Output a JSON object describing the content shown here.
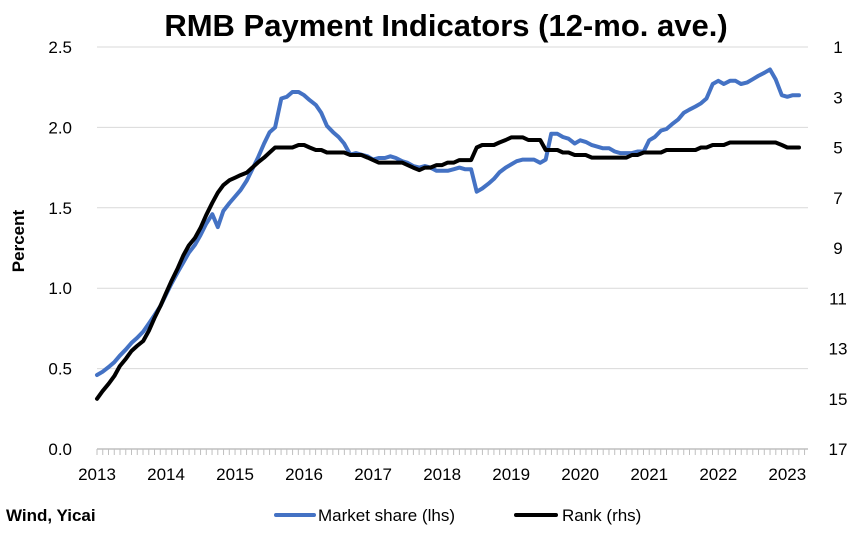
{
  "chart_data": {
    "type": "line",
    "title": "RMB Payment Indicators (12-mo. ave.)",
    "ylabel": "Percent",
    "y2label": "",
    "source": "Wind, Yicai",
    "x_ticks": [
      "2013",
      "2014",
      "2015",
      "2016",
      "2017",
      "2018",
      "2019",
      "2020",
      "2021",
      "2022",
      "2023"
    ],
    "y_ticks": [
      "0.0",
      "0.5",
      "1.0",
      "1.5",
      "2.0",
      "2.5"
    ],
    "y2_ticks": [
      "1",
      "3",
      "5",
      "7",
      "9",
      "11",
      "13",
      "15",
      "17"
    ],
    "xlim": [
      2013.0,
      2023.3
    ],
    "ylim": [
      0,
      2.5
    ],
    "y2lim": [
      1,
      17
    ],
    "y2_inverted": true,
    "grid": true,
    "legend_position": "bottom",
    "colors": {
      "market_share": "#4472C4",
      "rank": "#000000",
      "grid": "#d9d9d9"
    },
    "series": [
      {
        "name": "Market share (lhs)",
        "axis": "left",
        "points": [
          [
            2013.0,
            0.46
          ],
          [
            2013.08,
            0.48
          ],
          [
            2013.17,
            0.51
          ],
          [
            2013.25,
            0.54
          ],
          [
            2013.33,
            0.58
          ],
          [
            2013.42,
            0.62
          ],
          [
            2013.5,
            0.66
          ],
          [
            2013.58,
            0.69
          ],
          [
            2013.67,
            0.73
          ],
          [
            2013.75,
            0.78
          ],
          [
            2013.83,
            0.83
          ],
          [
            2013.92,
            0.89
          ],
          [
            2014.0,
            0.96
          ],
          [
            2014.08,
            1.03
          ],
          [
            2014.17,
            1.1
          ],
          [
            2014.25,
            1.16
          ],
          [
            2014.33,
            1.22
          ],
          [
            2014.42,
            1.27
          ],
          [
            2014.5,
            1.33
          ],
          [
            2014.58,
            1.4
          ],
          [
            2014.67,
            1.46
          ],
          [
            2014.75,
            1.38
          ],
          [
            2014.83,
            1.48
          ],
          [
            2014.92,
            1.53
          ],
          [
            2015.0,
            1.57
          ],
          [
            2015.08,
            1.61
          ],
          [
            2015.17,
            1.67
          ],
          [
            2015.25,
            1.74
          ],
          [
            2015.33,
            1.81
          ],
          [
            2015.42,
            1.9
          ],
          [
            2015.5,
            1.97
          ],
          [
            2015.58,
            2.0
          ],
          [
            2015.67,
            2.18
          ],
          [
            2015.75,
            2.19
          ],
          [
            2015.83,
            2.22
          ],
          [
            2015.92,
            2.22
          ],
          [
            2016.0,
            2.2
          ],
          [
            2016.08,
            2.17
          ],
          [
            2016.17,
            2.14
          ],
          [
            2016.25,
            2.09
          ],
          [
            2016.33,
            2.01
          ],
          [
            2016.42,
            1.97
          ],
          [
            2016.5,
            1.94
          ],
          [
            2016.58,
            1.9
          ],
          [
            2016.67,
            1.83
          ],
          [
            2016.75,
            1.84
          ],
          [
            2016.83,
            1.83
          ],
          [
            2016.92,
            1.82
          ],
          [
            2017.0,
            1.8
          ],
          [
            2017.08,
            1.81
          ],
          [
            2017.17,
            1.81
          ],
          [
            2017.25,
            1.82
          ],
          [
            2017.33,
            1.81
          ],
          [
            2017.42,
            1.79
          ],
          [
            2017.5,
            1.78
          ],
          [
            2017.58,
            1.76
          ],
          [
            2017.67,
            1.75
          ],
          [
            2017.75,
            1.76
          ],
          [
            2017.83,
            1.75
          ],
          [
            2017.92,
            1.73
          ],
          [
            2018.0,
            1.73
          ],
          [
            2018.08,
            1.73
          ],
          [
            2018.17,
            1.74
          ],
          [
            2018.25,
            1.75
          ],
          [
            2018.33,
            1.74
          ],
          [
            2018.42,
            1.74
          ],
          [
            2018.5,
            1.6
          ],
          [
            2018.58,
            1.62
          ],
          [
            2018.67,
            1.65
          ],
          [
            2018.75,
            1.68
          ],
          [
            2018.83,
            1.72
          ],
          [
            2018.92,
            1.75
          ],
          [
            2019.0,
            1.77
          ],
          [
            2019.08,
            1.79
          ],
          [
            2019.17,
            1.8
          ],
          [
            2019.25,
            1.8
          ],
          [
            2019.33,
            1.8
          ],
          [
            2019.42,
            1.78
          ],
          [
            2019.5,
            1.8
          ],
          [
            2019.58,
            1.96
          ],
          [
            2019.67,
            1.96
          ],
          [
            2019.75,
            1.94
          ],
          [
            2019.83,
            1.93
          ],
          [
            2019.92,
            1.9
          ],
          [
            2020.0,
            1.92
          ],
          [
            2020.08,
            1.91
          ],
          [
            2020.17,
            1.89
          ],
          [
            2020.25,
            1.88
          ],
          [
            2020.33,
            1.87
          ],
          [
            2020.42,
            1.87
          ],
          [
            2020.5,
            1.85
          ],
          [
            2020.58,
            1.84
          ],
          [
            2020.67,
            1.84
          ],
          [
            2020.75,
            1.84
          ],
          [
            2020.83,
            1.85
          ],
          [
            2020.92,
            1.85
          ],
          [
            2021.0,
            1.92
          ],
          [
            2021.08,
            1.94
          ],
          [
            2021.17,
            1.98
          ],
          [
            2021.25,
            1.99
          ],
          [
            2021.33,
            2.02
          ],
          [
            2021.42,
            2.05
          ],
          [
            2021.5,
            2.09
          ],
          [
            2021.58,
            2.11
          ],
          [
            2021.67,
            2.13
          ],
          [
            2021.75,
            2.15
          ],
          [
            2021.83,
            2.18
          ],
          [
            2021.92,
            2.27
          ],
          [
            2022.0,
            2.29
          ],
          [
            2022.08,
            2.27
          ],
          [
            2022.17,
            2.29
          ],
          [
            2022.25,
            2.29
          ],
          [
            2022.33,
            2.27
          ],
          [
            2022.42,
            2.28
          ],
          [
            2022.5,
            2.3
          ],
          [
            2022.58,
            2.32
          ],
          [
            2022.67,
            2.34
          ],
          [
            2022.75,
            2.36
          ],
          [
            2022.83,
            2.3
          ],
          [
            2022.92,
            2.2
          ],
          [
            2023.0,
            2.19
          ],
          [
            2023.08,
            2.2
          ],
          [
            2023.17,
            2.2
          ]
        ]
      },
      {
        "name": "Rank (rhs)",
        "axis": "right",
        "points": [
          [
            2013.0,
            15.0
          ],
          [
            2013.08,
            14.7
          ],
          [
            2013.17,
            14.4
          ],
          [
            2013.25,
            14.1
          ],
          [
            2013.33,
            13.7
          ],
          [
            2013.42,
            13.4
          ],
          [
            2013.5,
            13.1
          ],
          [
            2013.58,
            12.9
          ],
          [
            2013.67,
            12.7
          ],
          [
            2013.75,
            12.3
          ],
          [
            2013.83,
            11.8
          ],
          [
            2013.92,
            11.3
          ],
          [
            2014.0,
            10.8
          ],
          [
            2014.08,
            10.3
          ],
          [
            2014.17,
            9.8
          ],
          [
            2014.25,
            9.3
          ],
          [
            2014.33,
            8.9
          ],
          [
            2014.42,
            8.6
          ],
          [
            2014.5,
            8.2
          ],
          [
            2014.58,
            7.7
          ],
          [
            2014.67,
            7.2
          ],
          [
            2014.75,
            6.8
          ],
          [
            2014.83,
            6.5
          ],
          [
            2014.92,
            6.3
          ],
          [
            2015.0,
            6.2
          ],
          [
            2015.08,
            6.1
          ],
          [
            2015.17,
            6.0
          ],
          [
            2015.25,
            5.8
          ],
          [
            2015.33,
            5.6
          ],
          [
            2015.42,
            5.4
          ],
          [
            2015.5,
            5.2
          ],
          [
            2015.58,
            5.0
          ],
          [
            2015.67,
            5.0
          ],
          [
            2015.75,
            5.0
          ],
          [
            2015.83,
            5.0
          ],
          [
            2015.92,
            4.9
          ],
          [
            2016.0,
            4.9
          ],
          [
            2016.08,
            5.0
          ],
          [
            2016.17,
            5.1
          ],
          [
            2016.25,
            5.1
          ],
          [
            2016.33,
            5.2
          ],
          [
            2016.42,
            5.2
          ],
          [
            2016.5,
            5.2
          ],
          [
            2016.58,
            5.2
          ],
          [
            2016.67,
            5.3
          ],
          [
            2016.75,
            5.3
          ],
          [
            2016.83,
            5.3
          ],
          [
            2016.92,
            5.4
          ],
          [
            2017.0,
            5.5
          ],
          [
            2017.08,
            5.6
          ],
          [
            2017.17,
            5.6
          ],
          [
            2017.25,
            5.6
          ],
          [
            2017.33,
            5.6
          ],
          [
            2017.42,
            5.6
          ],
          [
            2017.5,
            5.7
          ],
          [
            2017.58,
            5.8
          ],
          [
            2017.67,
            5.9
          ],
          [
            2017.75,
            5.8
          ],
          [
            2017.83,
            5.8
          ],
          [
            2017.92,
            5.7
          ],
          [
            2018.0,
            5.7
          ],
          [
            2018.08,
            5.6
          ],
          [
            2018.17,
            5.6
          ],
          [
            2018.25,
            5.5
          ],
          [
            2018.33,
            5.5
          ],
          [
            2018.42,
            5.5
          ],
          [
            2018.5,
            5.0
          ],
          [
            2018.58,
            4.9
          ],
          [
            2018.67,
            4.9
          ],
          [
            2018.75,
            4.9
          ],
          [
            2018.83,
            4.8
          ],
          [
            2018.92,
            4.7
          ],
          [
            2019.0,
            4.6
          ],
          [
            2019.08,
            4.6
          ],
          [
            2019.17,
            4.6
          ],
          [
            2019.25,
            4.7
          ],
          [
            2019.33,
            4.7
          ],
          [
            2019.42,
            4.7
          ],
          [
            2019.5,
            5.1
          ],
          [
            2019.58,
            5.1
          ],
          [
            2019.67,
            5.1
          ],
          [
            2019.75,
            5.2
          ],
          [
            2019.83,
            5.2
          ],
          [
            2019.92,
            5.3
          ],
          [
            2020.0,
            5.3
          ],
          [
            2020.08,
            5.3
          ],
          [
            2020.17,
            5.4
          ],
          [
            2020.25,
            5.4
          ],
          [
            2020.33,
            5.4
          ],
          [
            2020.42,
            5.4
          ],
          [
            2020.5,
            5.4
          ],
          [
            2020.58,
            5.4
          ],
          [
            2020.67,
            5.4
          ],
          [
            2020.75,
            5.3
          ],
          [
            2020.83,
            5.3
          ],
          [
            2020.92,
            5.2
          ],
          [
            2021.0,
            5.2
          ],
          [
            2021.08,
            5.2
          ],
          [
            2021.17,
            5.2
          ],
          [
            2021.25,
            5.1
          ],
          [
            2021.33,
            5.1
          ],
          [
            2021.42,
            5.1
          ],
          [
            2021.5,
            5.1
          ],
          [
            2021.58,
            5.1
          ],
          [
            2021.67,
            5.1
          ],
          [
            2021.75,
            5.0
          ],
          [
            2021.83,
            5.0
          ],
          [
            2021.92,
            4.9
          ],
          [
            2022.0,
            4.9
          ],
          [
            2022.08,
            4.9
          ],
          [
            2022.17,
            4.8
          ],
          [
            2022.25,
            4.8
          ],
          [
            2022.33,
            4.8
          ],
          [
            2022.42,
            4.8
          ],
          [
            2022.5,
            4.8
          ],
          [
            2022.58,
            4.8
          ],
          [
            2022.67,
            4.8
          ],
          [
            2022.75,
            4.8
          ],
          [
            2022.83,
            4.8
          ],
          [
            2022.92,
            4.9
          ],
          [
            2023.0,
            5.0
          ],
          [
            2023.08,
            5.0
          ],
          [
            2023.17,
            5.0
          ]
        ]
      }
    ]
  }
}
